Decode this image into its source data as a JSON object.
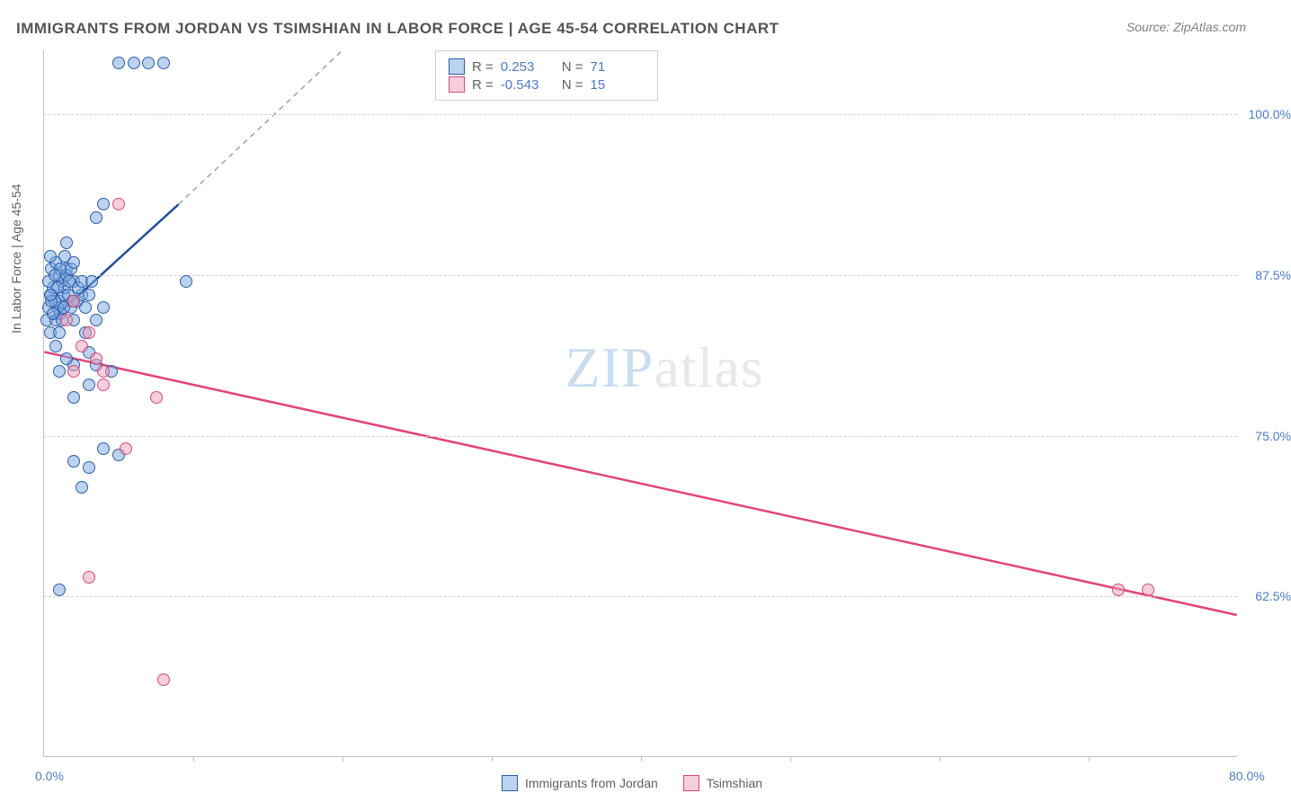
{
  "chart": {
    "type": "scatter",
    "title": "IMMIGRANTS FROM JORDAN VS TSIMSHIAN IN LABOR FORCE | AGE 45-54 CORRELATION CHART",
    "source": "Source: ZipAtlas.com",
    "ylabel": "In Labor Force | Age 45-54",
    "xlim": [
      0,
      80
    ],
    "ylim": [
      50,
      105
    ],
    "yticks": [
      {
        "value": 62.5,
        "label": "62.5%"
      },
      {
        "value": 75.0,
        "label": "75.0%"
      },
      {
        "value": 87.5,
        "label": "87.5%"
      },
      {
        "value": 100.0,
        "label": "100.0%"
      }
    ],
    "xticks_label": [
      {
        "value": 0,
        "label": "0.0%"
      },
      {
        "value": 80,
        "label": "80.0%"
      }
    ],
    "xticks_minor": [
      10,
      20,
      30,
      40,
      50,
      60,
      70
    ],
    "background_color": "#ffffff",
    "grid_color": "#d0d0d0",
    "marker_radius": 7,
    "series": [
      {
        "name": "Immigrants from Jordan",
        "color_fill": "rgba(122,168,225,0.5)",
        "color_stroke": "#2c5da8",
        "r_value": "0.253",
        "n_value": "71",
        "trend": {
          "x1": 0.5,
          "y1": 84,
          "x2": 9,
          "y2": 93,
          "dash_x2": 20,
          "dash_y2": 105,
          "color": "#1f4fa0",
          "width": 2.5
        },
        "points": [
          [
            0.2,
            84
          ],
          [
            0.3,
            85
          ],
          [
            0.5,
            86
          ],
          [
            0.8,
            84
          ],
          [
            1.0,
            85.5
          ],
          [
            1.2,
            87
          ],
          [
            0.4,
            83
          ],
          [
            0.6,
            86.5
          ],
          [
            0.9,
            85
          ],
          [
            1.1,
            84.5
          ],
          [
            1.3,
            86
          ],
          [
            1.5,
            88
          ],
          [
            0.7,
            85.5
          ],
          [
            1.0,
            87.5
          ],
          [
            0.5,
            88
          ],
          [
            1.4,
            86.5
          ],
          [
            1.8,
            85
          ],
          [
            2.0,
            87
          ],
          [
            0.3,
            87
          ],
          [
            0.8,
            88.5
          ],
          [
            1.2,
            84
          ],
          [
            1.6,
            86
          ],
          [
            2.2,
            85.5
          ],
          [
            0.4,
            89
          ],
          [
            1.0,
            83
          ],
          [
            1.5,
            87.5
          ],
          [
            0.6,
            84.5
          ],
          [
            2.5,
            86
          ],
          [
            1.8,
            88
          ],
          [
            0.9,
            86.5
          ],
          [
            1.3,
            85
          ],
          [
            2.0,
            84
          ],
          [
            0.5,
            85.5
          ],
          [
            1.7,
            87
          ],
          [
            2.3,
            86.5
          ],
          [
            0.8,
            82
          ],
          [
            1.4,
            89
          ],
          [
            2.8,
            85
          ],
          [
            1.1,
            88
          ],
          [
            0.7,
            87.5
          ],
          [
            3.0,
            86
          ],
          [
            1.9,
            85.5
          ],
          [
            2.5,
            87
          ],
          [
            0.4,
            86
          ],
          [
            3.5,
            84
          ],
          [
            2.0,
            88.5
          ],
          [
            4.0,
            93
          ],
          [
            3.5,
            92
          ],
          [
            2.0,
            73
          ],
          [
            3.0,
            72.5
          ],
          [
            4.0,
            74
          ],
          [
            5.0,
            73.5
          ],
          [
            2.5,
            71
          ],
          [
            1.0,
            80
          ],
          [
            2.0,
            80.5
          ],
          [
            3.0,
            79
          ],
          [
            1.5,
            81
          ],
          [
            4.5,
            80
          ],
          [
            3.0,
            81.5
          ],
          [
            5.0,
            104
          ],
          [
            6.0,
            104
          ],
          [
            7.0,
            104
          ],
          [
            8.0,
            104
          ],
          [
            9.5,
            87
          ],
          [
            1.0,
            63
          ],
          [
            2.0,
            78
          ],
          [
            3.5,
            80.5
          ],
          [
            4.0,
            85
          ],
          [
            2.8,
            83
          ],
          [
            3.2,
            87
          ],
          [
            1.5,
            90
          ]
        ]
      },
      {
        "name": "Tsimshian",
        "color_fill": "rgba(240,160,185,0.5)",
        "color_stroke": "#d84a7a",
        "r_value": "-0.543",
        "n_value": "15",
        "trend": {
          "x1": 0,
          "y1": 81.5,
          "x2": 80,
          "y2": 61,
          "color": "#e2437a",
          "width": 2.5
        },
        "points": [
          [
            2.0,
            85.5
          ],
          [
            3.0,
            83
          ],
          [
            4.0,
            80
          ],
          [
            2.5,
            82
          ],
          [
            3.5,
            81
          ],
          [
            1.5,
            84
          ],
          [
            5.0,
            93
          ],
          [
            5.5,
            74
          ],
          [
            7.5,
            78
          ],
          [
            3.0,
            64
          ],
          [
            8.0,
            56
          ],
          [
            72,
            63
          ],
          [
            74,
            63
          ],
          [
            2.0,
            80
          ],
          [
            4.0,
            79
          ]
        ]
      }
    ],
    "bottom_legend": [
      {
        "swatch": "blue",
        "label": "Immigrants from Jordan"
      },
      {
        "swatch": "pink",
        "label": "Tsimshian"
      }
    ],
    "watermark": {
      "part1": "ZIP",
      "part2": "atlas"
    }
  }
}
